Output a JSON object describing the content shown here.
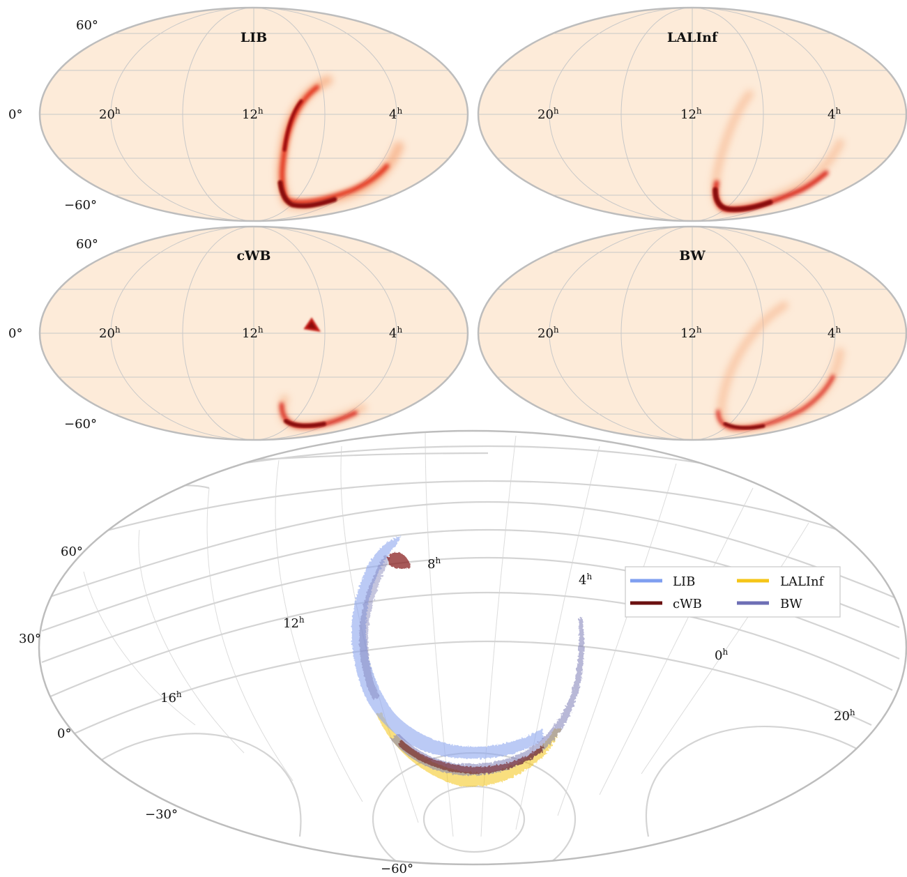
{
  "chart_data": [
    {
      "type": "heatmap",
      "projection": "mollweide",
      "title": "LIB",
      "ra_tick_labels": [
        "20h",
        "12h",
        "4h"
      ],
      "dec_tick_labels": [
        "60°",
        "0°",
        "−60°"
      ],
      "grid": true,
      "colormap": "white-orange-red-darkred",
      "background_color": "#fdebd9",
      "note": "arc of probability from mid-north near 4h through south pole region"
    },
    {
      "type": "heatmap",
      "projection": "mollweide",
      "title": "LALInf",
      "ra_tick_labels": [
        "20h",
        "12h",
        "4h"
      ],
      "dec_tick_labels": [],
      "grid": true,
      "colormap": "white-orange-red-darkred",
      "background_color": "#fdebd9"
    },
    {
      "type": "heatmap",
      "projection": "mollweide",
      "title": "cWB",
      "ra_tick_labels": [
        "20h",
        "12h",
        "4h"
      ],
      "dec_tick_labels": [
        "60°",
        "0°",
        "−60°"
      ],
      "grid": true,
      "colormap": "white-orange-red-darkred",
      "background_color": "#fdebd9"
    },
    {
      "type": "heatmap",
      "projection": "mollweide",
      "title": "BW",
      "ra_tick_labels": [
        "20h",
        "12h",
        "4h"
      ],
      "dec_tick_labels": [],
      "grid": true,
      "colormap": "white-orange-red-darkred",
      "background_color": "#fdebd9"
    },
    {
      "type": "area",
      "projection": "rotated mollweide (skymap overlay)",
      "ra_tick_labels": [
        "8h",
        "4h",
        "12h",
        "0h",
        "16h",
        "20h"
      ],
      "dec_tick_labels": [
        "60°",
        "30°",
        "0°",
        "−30°",
        "−60°"
      ],
      "grid": true,
      "legend": {
        "placement": "upper-right",
        "columns": 2,
        "entries": [
          {
            "name": "LIB",
            "color": "#7f9ff0"
          },
          {
            "name": "LALInf",
            "color": "#f5c518"
          },
          {
            "name": "cWB",
            "color": "#6b1010"
          },
          {
            "name": "BW",
            "color": "#6e6fb5"
          }
        ]
      },
      "series": [
        {
          "name": "LIB",
          "color": "#7f9ff0"
        },
        {
          "name": "LALInf",
          "color": "#f5c518"
        },
        {
          "name": "cWB",
          "color": "#6b1010"
        },
        {
          "name": "BW",
          "color": "#6e6fb5"
        }
      ]
    }
  ]
}
